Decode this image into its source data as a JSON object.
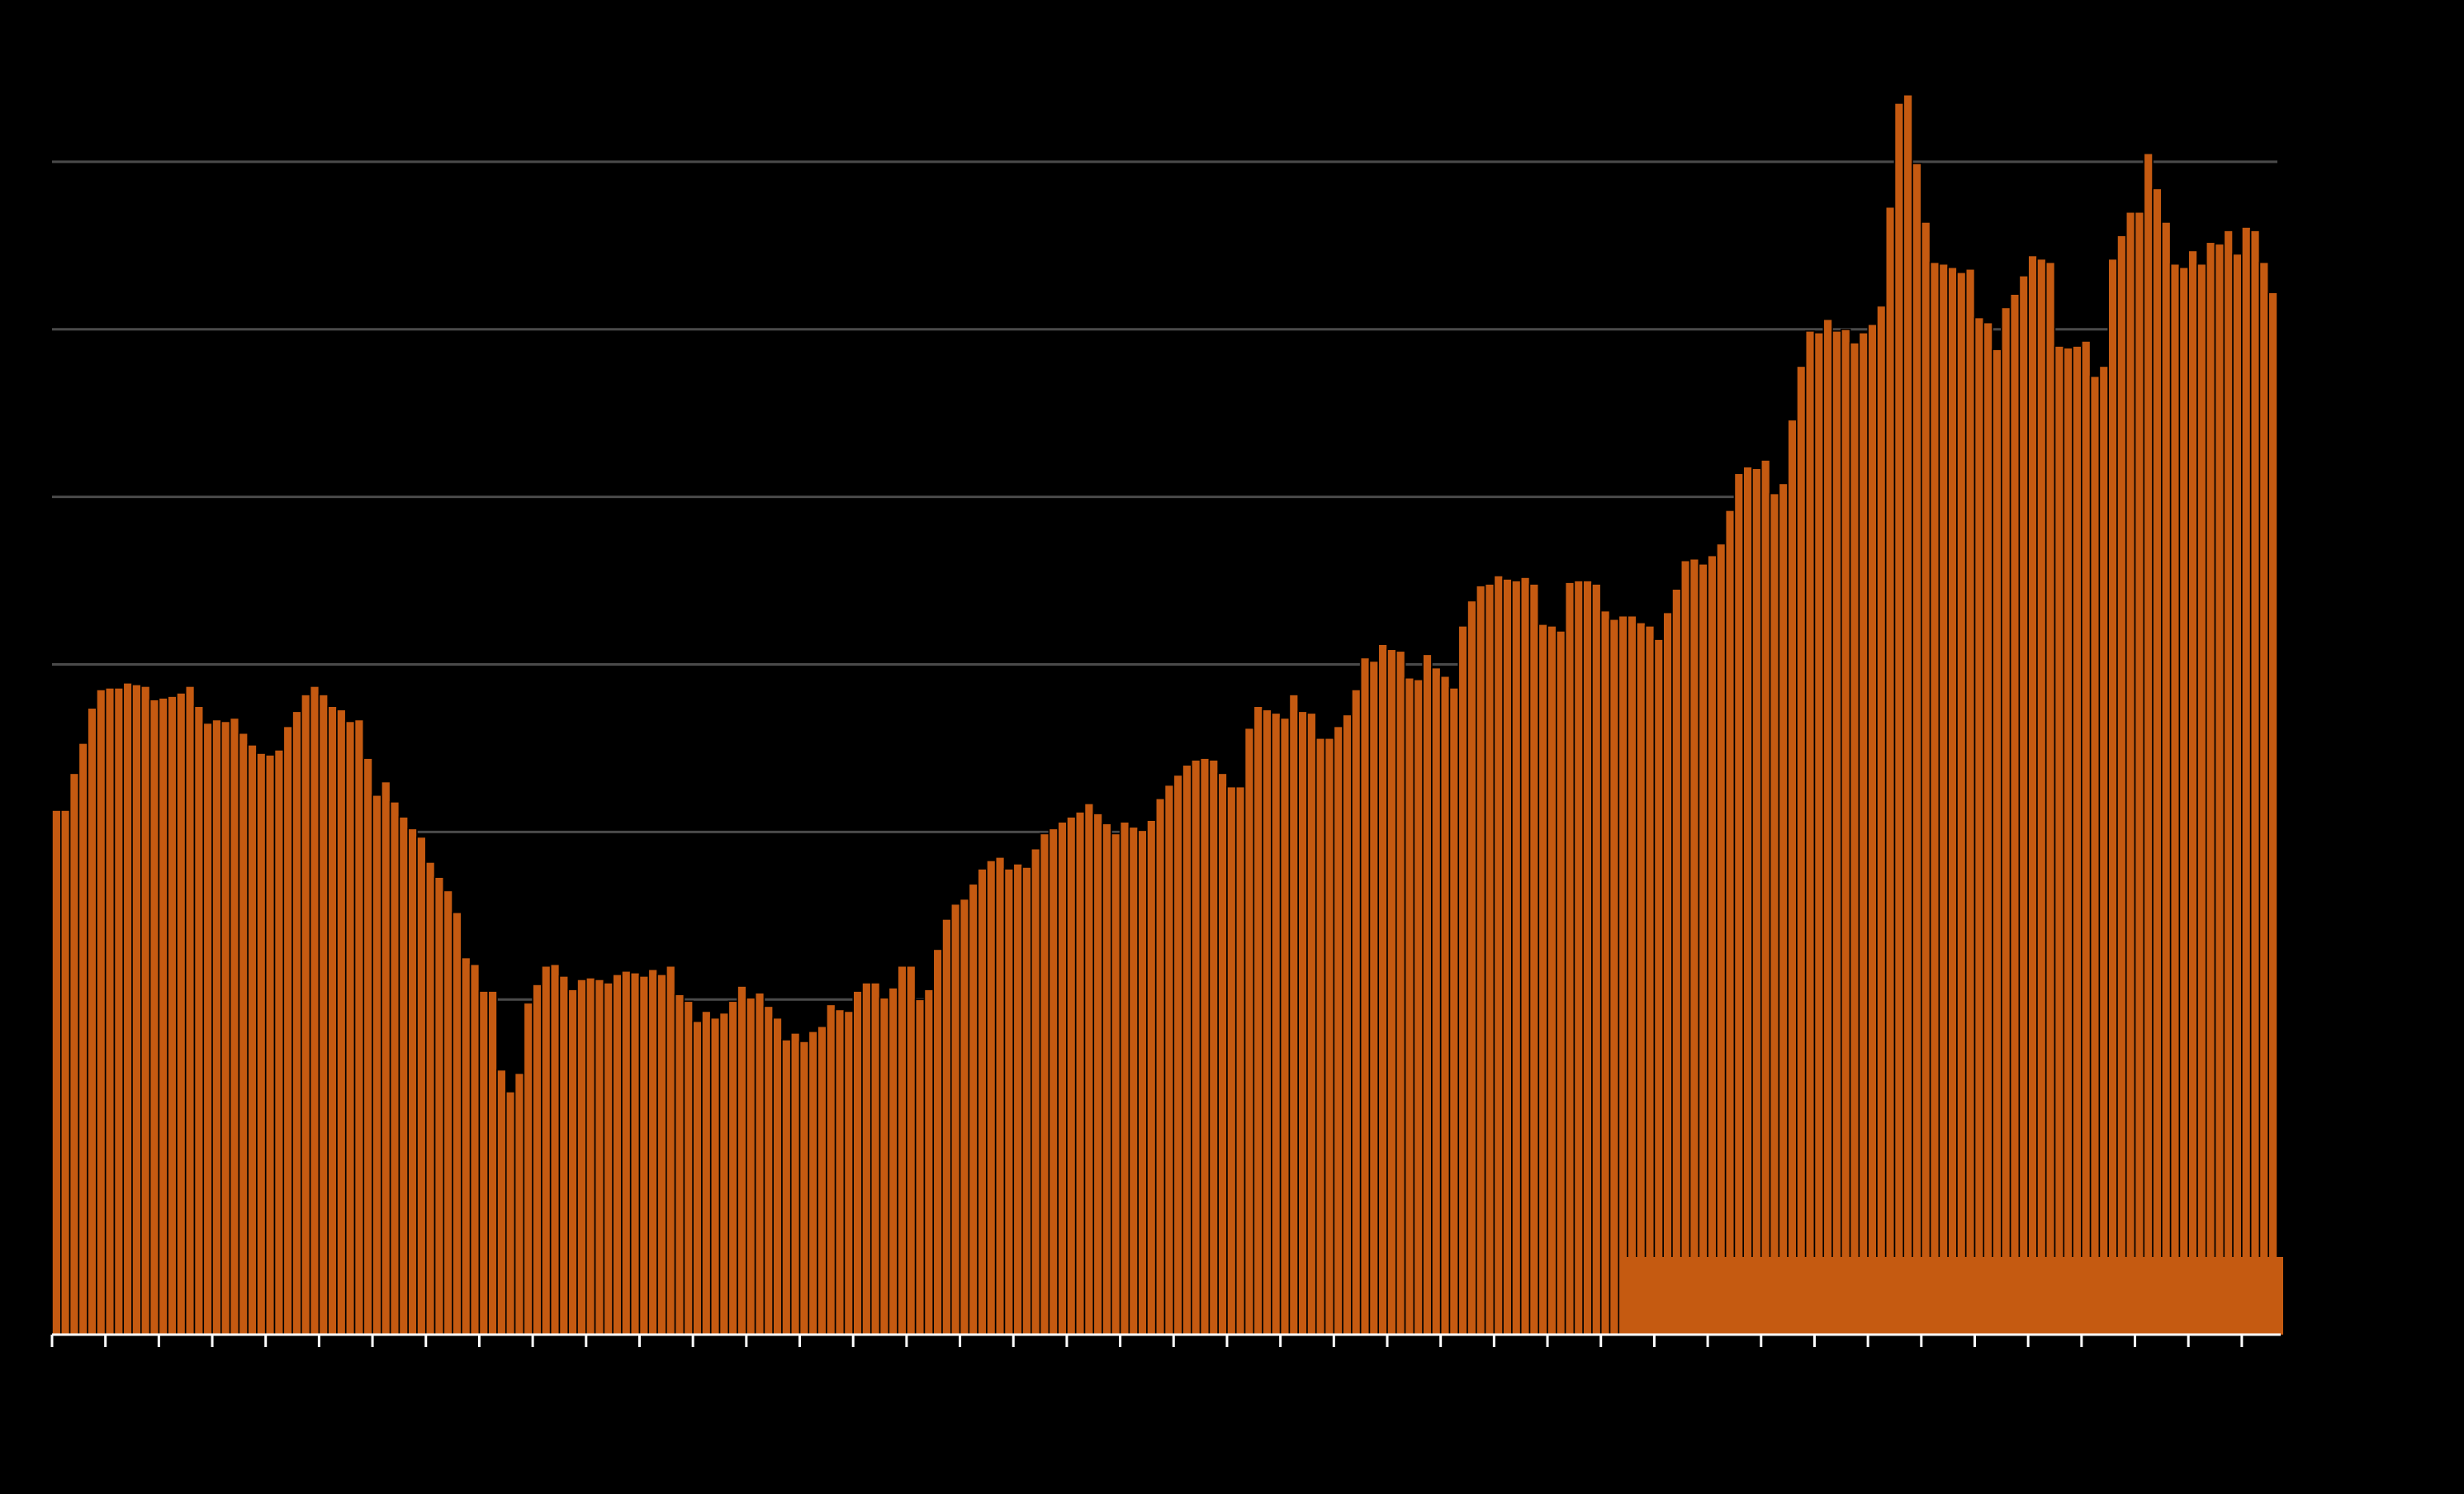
{
  "chart_data": {
    "type": "bar",
    "color": "#c55a11",
    "grid": true,
    "ylim": [
      0,
      8
    ],
    "yticks": [
      1,
      2,
      3,
      4,
      5,
      6,
      7
    ],
    "values": [
      3.13,
      3.13,
      3.35,
      3.53,
      3.74,
      3.85,
      3.86,
      3.86,
      3.89,
      3.88,
      3.87,
      3.79,
      3.8,
      3.81,
      3.83,
      3.87,
      3.75,
      3.65,
      3.67,
      3.66,
      3.68,
      3.59,
      3.52,
      3.47,
      3.46,
      3.49,
      3.63,
      3.72,
      3.82,
      3.87,
      3.82,
      3.75,
      3.73,
      3.66,
      3.67,
      3.44,
      3.22,
      3.3,
      3.18,
      3.09,
      3.02,
      2.97,
      2.82,
      2.73,
      2.65,
      2.52,
      2.25,
      2.21,
      2.05,
      2.05,
      1.58,
      1.45,
      1.56,
      1.98,
      2.09,
      2.2,
      2.21,
      2.14,
      2.06,
      2.12,
      2.13,
      2.12,
      2.1,
      2.15,
      2.17,
      2.16,
      2.14,
      2.18,
      2.15,
      2.2,
      2.03,
      1.99,
      1.87,
      1.93,
      1.89,
      1.92,
      1.99,
      2.08,
      2.01,
      2.04,
      1.96,
      1.89,
      1.76,
      1.8,
      1.75,
      1.81,
      1.84,
      1.97,
      1.94,
      1.93,
      2.05,
      2.1,
      2.1,
      2.01,
      2.07,
      2.2,
      2.2,
      2.0,
      2.06,
      2.3,
      2.48,
      2.57,
      2.6,
      2.69,
      2.78,
      2.83,
      2.85,
      2.78,
      2.81,
      2.79,
      2.9,
      2.99,
      3.02,
      3.06,
      3.09,
      3.12,
      3.17,
      3.11,
      3.05,
      2.99,
      3.06,
      3.03,
      3.01,
      3.07,
      3.2,
      3.28,
      3.34,
      3.4,
      3.43,
      3.44,
      3.43,
      3.35,
      3.27,
      3.27,
      3.62,
      3.75,
      3.73,
      3.71,
      3.68,
      3.82,
      3.72,
      3.71,
      3.56,
      3.56,
      3.63,
      3.7,
      3.85,
      4.04,
      4.02,
      4.12,
      4.09,
      4.08,
      3.92,
      3.91,
      4.06,
      3.98,
      3.93,
      3.86,
      4.23,
      4.38,
      4.47,
      4.48,
      4.53,
      4.51,
      4.5,
      4.52,
      4.48,
      4.24,
      4.23,
      4.2,
      4.49,
      4.5,
      4.5,
      4.48,
      4.32,
      4.27,
      4.29,
      4.29,
      4.25,
      4.23,
      4.15,
      4.31,
      4.45,
      4.62,
      4.63,
      4.6,
      4.65,
      4.72,
      4.92,
      5.14,
      5.18,
      5.17,
      5.22,
      5.02,
      5.08,
      5.46,
      5.78,
      5.99,
      5.98,
      6.06,
      5.99,
      6.0,
      5.92,
      5.98,
      6.03,
      6.14,
      6.73,
      7.35,
      7.4,
      6.99,
      6.64,
      6.4,
      6.39,
      6.37,
      6.34,
      6.36,
      6.07,
      6.04,
      5.88,
      6.13,
      6.21,
      6.32,
      6.44,
      6.42,
      6.4,
      5.9,
      5.89,
      5.9,
      5.93,
      5.72,
      5.78,
      6.42,
      6.56,
      6.7,
      6.7,
      7.05,
      6.84,
      6.64,
      6.39,
      6.37,
      6.47,
      6.39,
      6.52,
      6.51,
      6.59,
      6.45,
      6.61,
      6.59,
      6.4,
      6.22
    ]
  }
}
